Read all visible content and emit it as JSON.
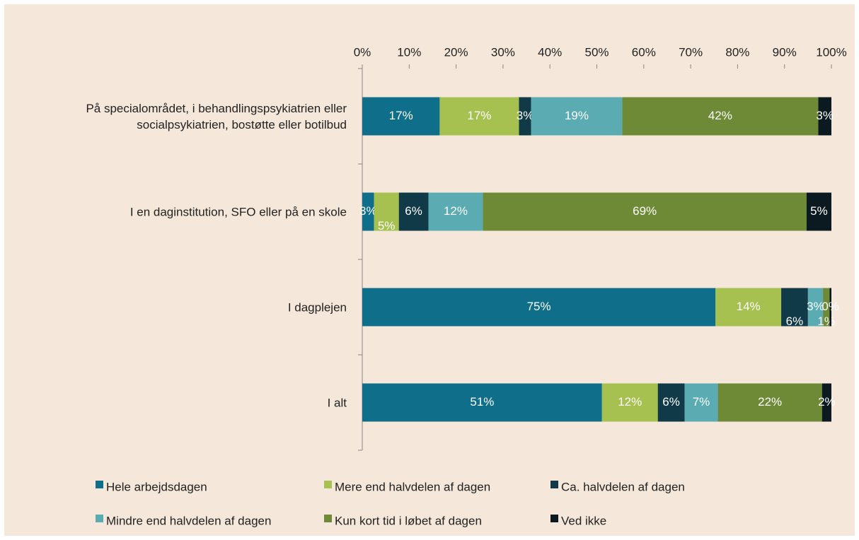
{
  "chart_data": {
    "type": "stacked_barh",
    "categories": [
      "På specialområdet, i behandlingspsykiatrien eller socialpsykiatrien, bostøtte eller botilbud",
      "I en daginstitution, SFO eller på en skole",
      "I dagplejen",
      "I alt"
    ],
    "series": [
      {
        "name": "Hele arbejdsdagen",
        "color": "#0f6e89",
        "values": [
          16.5,
          2.5,
          75.3,
          51.1
        ],
        "value_labels": [
          "17%",
          "3%",
          "75%",
          "51%"
        ]
      },
      {
        "name": "Mere end halvdelen af dagen",
        "color": "#a6c14f",
        "values": [
          16.9,
          5.3,
          14.0,
          11.9
        ],
        "value_labels": [
          "17%",
          "5%",
          "14%",
          "12%"
        ]
      },
      {
        "name": "Ca. halvdelen af dagen",
        "color": "#103a47",
        "values": [
          2.6,
          6.3,
          5.7,
          5.7
        ],
        "value_labels": [
          "3%",
          "6%",
          "6%",
          "6%"
        ]
      },
      {
        "name": "Mindre end halvdelen af dagen",
        "color": "#5aabb2",
        "values": [
          19.4,
          11.6,
          3.2,
          7.1
        ],
        "value_labels": [
          "19%",
          "12%",
          "3%",
          "7%"
        ]
      },
      {
        "name": "Kun kort tid i løbet af dagen",
        "color": "#6f8a36",
        "values": [
          41.8,
          69.0,
          1.4,
          22.2
        ],
        "value_labels": [
          "42%",
          "69%",
          "1%",
          "22%"
        ]
      },
      {
        "name": "Ved ikke",
        "color": "#0b1a20",
        "values": [
          2.8,
          5.3,
          0.4,
          2.0
        ],
        "value_labels": [
          "3%",
          "5%",
          "0%",
          "2%"
        ]
      }
    ],
    "xlim": [
      0,
      100
    ],
    "xticks": [
      {
        "value": 0,
        "label": "0%"
      },
      {
        "value": 10,
        "label": "10%"
      },
      {
        "value": 20,
        "label": "20%"
      },
      {
        "value": 30,
        "label": "30%"
      },
      {
        "value": 40,
        "label": "40%"
      },
      {
        "value": 50,
        "label": "50%"
      },
      {
        "value": 60,
        "label": "60%"
      },
      {
        "value": 70,
        "label": "70%"
      },
      {
        "value": 80,
        "label": "80%"
      },
      {
        "value": 90,
        "label": "90%"
      },
      {
        "value": 100,
        "label": "100%"
      }
    ],
    "legend": "bottom"
  }
}
